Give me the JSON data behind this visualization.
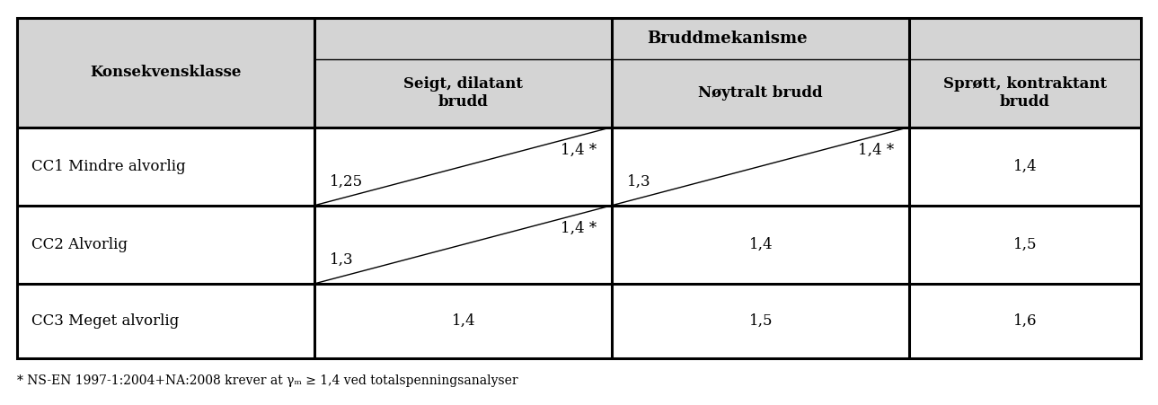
{
  "title": "Bruddmekanisme",
  "konsekvensklasse": "Konsekvensklasse",
  "bruddmekanisme": "Bruddmekanisme",
  "sub_headers": [
    "Seigt, dilatant\nbrudd",
    "Nøytralt brudd",
    "Sprøtt, kontraktant\nbrudd"
  ],
  "row_labels": [
    "CC1 Mindre alvorlig",
    "CC2 Alvorlig",
    "CC3 Meget alvorlig"
  ],
  "row_data": [
    {
      "col1_bl": "1,25",
      "col1_tr": "1,4 *",
      "col1_diag": true,
      "col2_bl": "1,3",
      "col2_tr": "1,4 *",
      "col2_diag": true,
      "col3": "1,4"
    },
    {
      "col1_bl": "1,3",
      "col1_tr": "1,4 *",
      "col1_diag": true,
      "col2_bl": "1,4",
      "col2_tr": null,
      "col2_diag": false,
      "col3": "1,5"
    },
    {
      "col1_bl": "1,4",
      "col1_tr": null,
      "col1_diag": false,
      "col2_bl": "1,5",
      "col2_tr": null,
      "col2_diag": false,
      "col3": "1,6"
    }
  ],
  "footnote": "* NS-EN 1997-1:2004+NA:2008 krever at γₘ ≥ 1,4 ved totalspenningsanalyser",
  "header_bg": "#d4d4d4",
  "body_bg": "#ffffff",
  "border_color": "#000000",
  "text_color": "#000000",
  "font_size": 12,
  "header_font_size": 12,
  "footnote_font_size": 10,
  "figsize": [
    12.89,
    4.51
  ]
}
